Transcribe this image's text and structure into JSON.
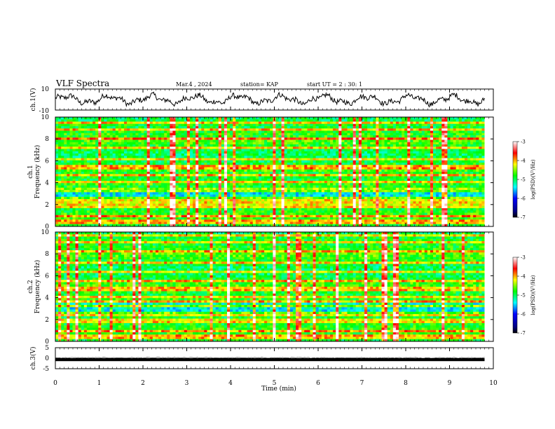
{
  "header": {
    "title": "VLF Spectra",
    "date": "Mar.4 , 2024",
    "station": "station= KAP",
    "start": "start UT = 2 : 30: 1"
  },
  "chart_data": [
    {
      "type": "line",
      "panel": "waveform-ch1",
      "ylabel": "ch.1(V)",
      "yticks": [
        "10",
        "-10"
      ],
      "ylim": [
        -10,
        10
      ],
      "xlim": [
        0,
        9.8
      ],
      "description_values": {
        "mean": 0,
        "range": [
          -7,
          7
        ]
      }
    },
    {
      "type": "heatmap",
      "panel": "spectrogram-ch1",
      "ylabel_top": "ch.1",
      "ylabel": "Frequency (kHz)",
      "yticks": [
        "0",
        "2",
        "4",
        "6",
        "8",
        "10"
      ],
      "ylim": [
        0,
        10
      ],
      "xlim": [
        0,
        9.8
      ],
      "colorbar": {
        "label": "log(PSD)(V²/Hz)",
        "ticks": [
          "-3",
          "-4",
          "-5",
          "-6",
          "-7"
        ],
        "range": [
          -7,
          -3
        ]
      },
      "bands_khz": [
        0.3,
        0.6,
        1.0,
        1.8,
        2.0,
        2.2,
        2.5,
        3.2,
        3.5,
        4.0,
        4.6,
        5.3,
        5.6,
        6.2,
        7.2,
        8.0,
        8.8,
        9.5
      ]
    },
    {
      "type": "heatmap",
      "panel": "spectrogram-ch2",
      "ylabel_top": "ch.2",
      "ylabel": "Frequency (kHz)",
      "yticks": [
        "0",
        "2",
        "4",
        "6",
        "8",
        "10"
      ],
      "ylim": [
        0,
        10
      ],
      "xlim": [
        0,
        9.8
      ],
      "colorbar": {
        "label": "log(PSD)(V²/Hz)",
        "ticks": [
          "-3",
          "-4",
          "-5",
          "-6",
          "-7"
        ],
        "range": [
          -7,
          -3
        ]
      },
      "bands_khz": [
        0.3,
        0.6,
        1.0,
        1.8,
        2.0,
        2.5,
        3.2,
        3.6,
        4.0,
        4.8,
        5.5,
        6.3,
        7.2,
        8.2,
        9.0,
        9.6
      ]
    },
    {
      "type": "line",
      "panel": "waveform-ch3",
      "ylabel": "ch.3(V)",
      "yticks": [
        "5",
        "0",
        "-5"
      ],
      "ylim": [
        -5,
        5
      ],
      "xlim": [
        0,
        9.8
      ],
      "description_values": {
        "mean": -0.7,
        "range": [
          -1.4,
          0
        ]
      }
    }
  ],
  "xaxis": {
    "label": "Time (min)",
    "ticks": [
      "0",
      "1",
      "2",
      "3",
      "4",
      "5",
      "6",
      "7",
      "8",
      "9",
      "10"
    ],
    "xlim": [
      0,
      10
    ]
  },
  "colors": {
    "colormap": [
      "#000080",
      "#0000ff",
      "#00ffff",
      "#00ff00",
      "#ffff00",
      "#ff0000",
      "#ffffff"
    ]
  }
}
